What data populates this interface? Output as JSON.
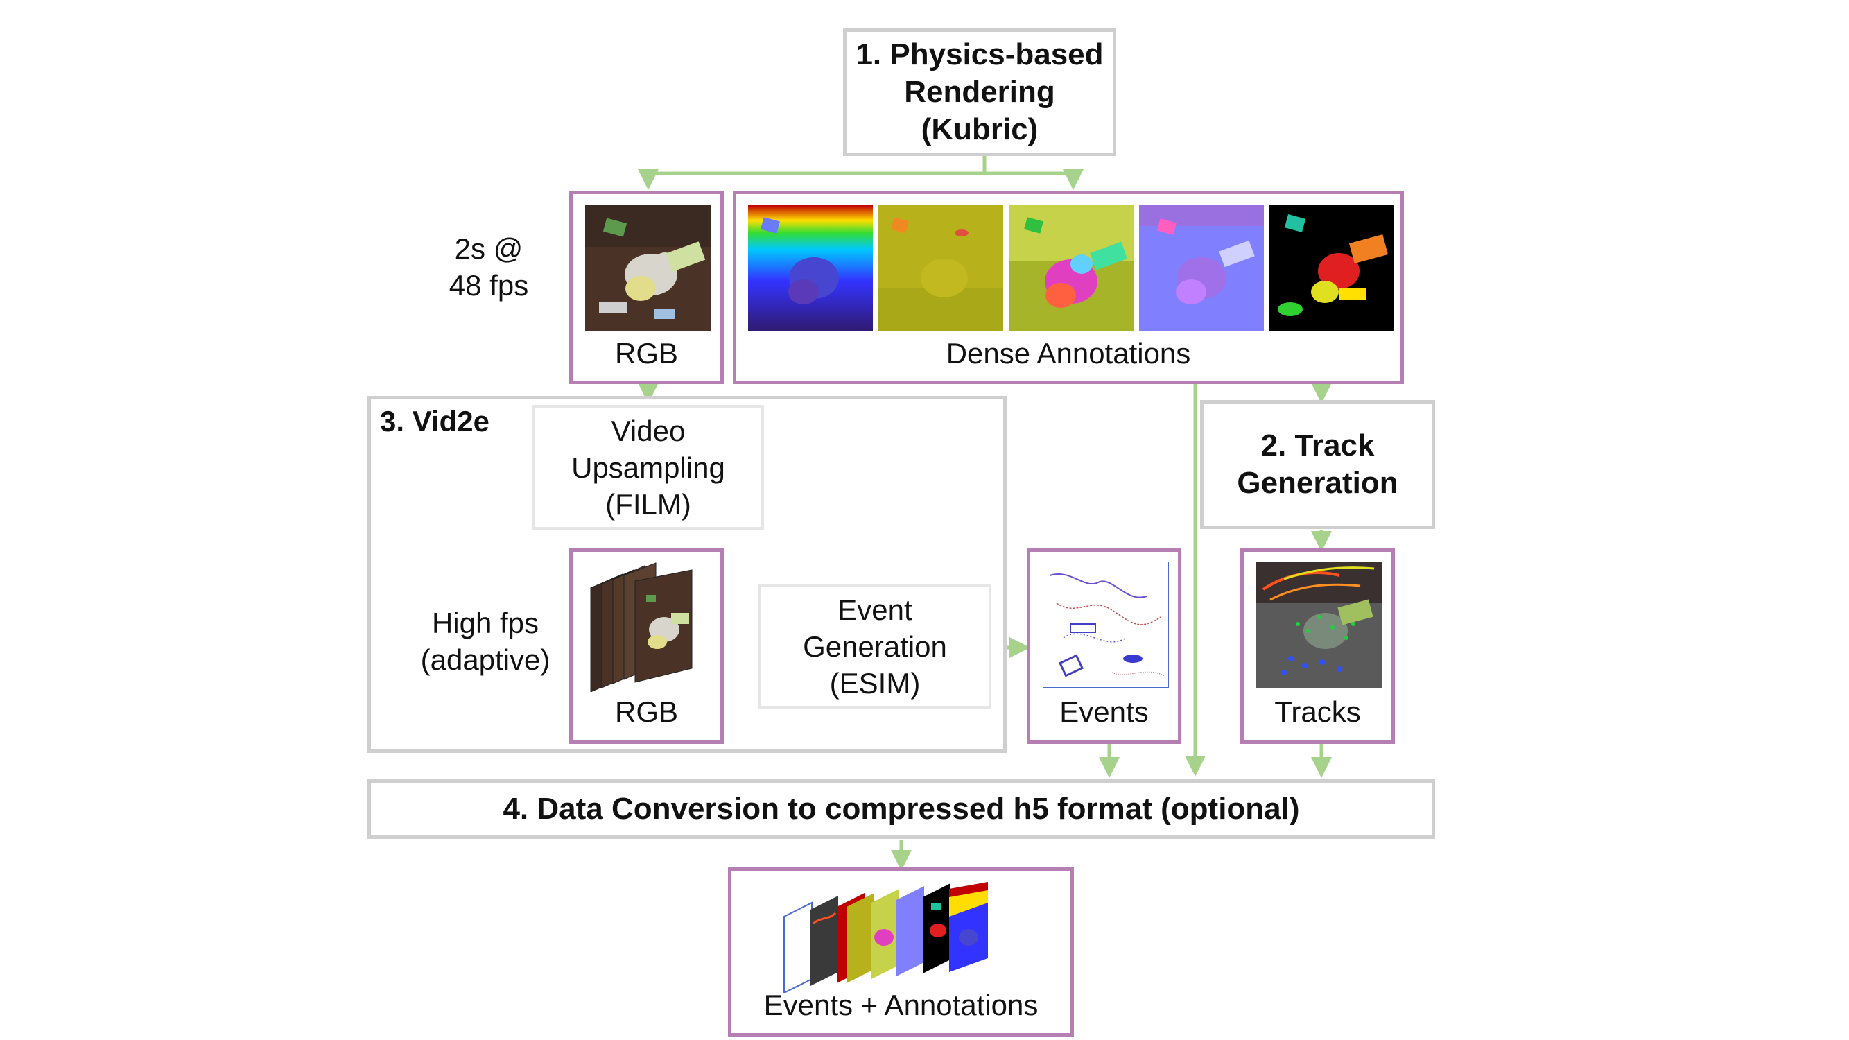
{
  "step1": {
    "line1": "1. Physics-based",
    "line2": "Rendering",
    "line3": "(Kubric)"
  },
  "fps_label": {
    "line1": "2s @",
    "line2": "48 fps"
  },
  "rgb_caption": "RGB",
  "dense_caption": "Dense Annotations",
  "step3_title": "3. Vid2e",
  "upsampling": {
    "line1": "Video",
    "line2": "Upsampling",
    "line3": "(FILM)"
  },
  "high_fps": {
    "line1": "High fps",
    "line2": "(adaptive)"
  },
  "rgb_stack_caption": "RGB",
  "event_gen": {
    "line1": "Event",
    "line2": "Generation",
    "line3": "(ESIM)"
  },
  "events_caption": "Events",
  "step2": {
    "line1": "2. Track",
    "line2": "Generation"
  },
  "tracks_caption": "Tracks",
  "step4_title": "4. Data Conversion to compressed h5 format (optional)",
  "output_caption": "Events + Annotations",
  "colors": {
    "arrow": "#a6d28c",
    "purple_border": "#b57fb3",
    "gray_border": "#cfcfcf"
  }
}
